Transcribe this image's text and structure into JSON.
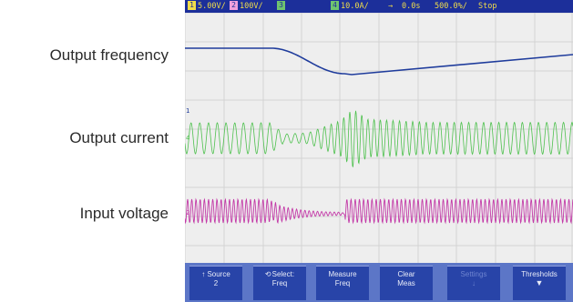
{
  "labels": {
    "output_frequency": "Output frequency",
    "output_current": "Output current",
    "input_voltage": "Input voltage"
  },
  "status_bar": {
    "ch1_number": "1",
    "ch1_scale": "5.00V/",
    "ch2_number": "2",
    "ch2_scale": "100V/",
    "ch3_number": "3",
    "ch4_number": "4",
    "ch4_scale": "10.0A/",
    "trigger_arrow": "→",
    "time_offset": "0.0s",
    "time_scale": "500.0%/",
    "run_state": "Stop"
  },
  "channel_markers": {
    "upper": "1",
    "middle": "4",
    "lower": "2"
  },
  "softkeys": [
    {
      "line1": "Source",
      "line2": "2",
      "arrow": "↑"
    },
    {
      "line1": "Select:",
      "line2": "Freq",
      "icon": "rotary-knob-icon"
    },
    {
      "line1": "Measure",
      "line2": "Freq"
    },
    {
      "line1": "Clear",
      "line2": "Meas"
    },
    {
      "line1": "Settings",
      "line2": "",
      "disabled": true
    },
    {
      "line1": "Thresholds",
      "line2": "",
      "down_arrow": true
    }
  ],
  "colors": {
    "background": "#ffffff",
    "screen": "#eeeeee",
    "grid": "#d4d4d4",
    "status_bar": "#1c2f9a",
    "status_text": "#f1dd4a",
    "ch1_frequency": "#1f3c9c",
    "ch4_current": "#4ec14e",
    "ch2_voltage": "#c33ba8",
    "softkey_bar": "#5c76c7",
    "softkey": "#2844a8"
  }
}
